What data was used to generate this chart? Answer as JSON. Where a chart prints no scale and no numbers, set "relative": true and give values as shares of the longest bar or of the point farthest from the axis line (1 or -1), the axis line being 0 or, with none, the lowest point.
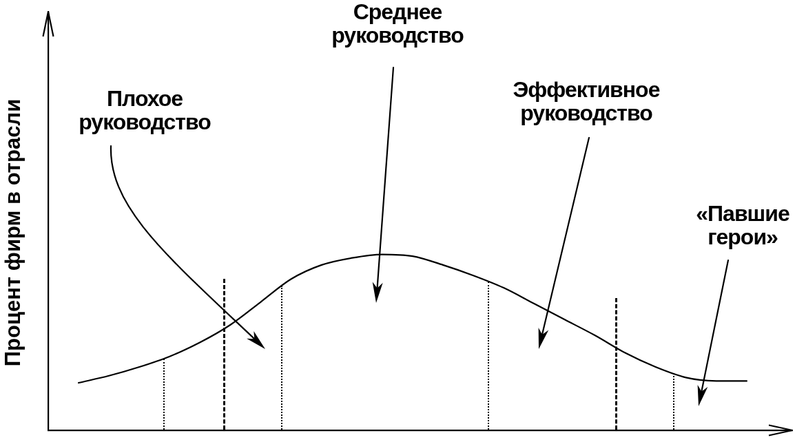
{
  "chart_data": {
    "type": "line",
    "ylabel": "Процент фирм в отрасли",
    "relative": true,
    "color": "#000000",
    "categories": [
      null,
      null,
      null,
      null,
      null,
      null,
      null,
      null,
      null,
      null,
      null,
      null,
      null,
      null,
      null,
      null,
      null,
      null,
      null,
      null,
      null,
      null,
      null
    ],
    "values": [
      0.27,
      0.31,
      0.36,
      0.42,
      0.5,
      0.6,
      0.73,
      0.86,
      0.94,
      0.98,
      1.0,
      0.99,
      0.94,
      0.88,
      0.81,
      0.72,
      0.63,
      0.54,
      0.44,
      0.36,
      0.3,
      0.28,
      0.28
    ],
    "annotations": [
      "Плохое руководство",
      "Среднее руководство",
      "Эффективное руководство",
      "«Павшие герои»"
    ]
  }
}
